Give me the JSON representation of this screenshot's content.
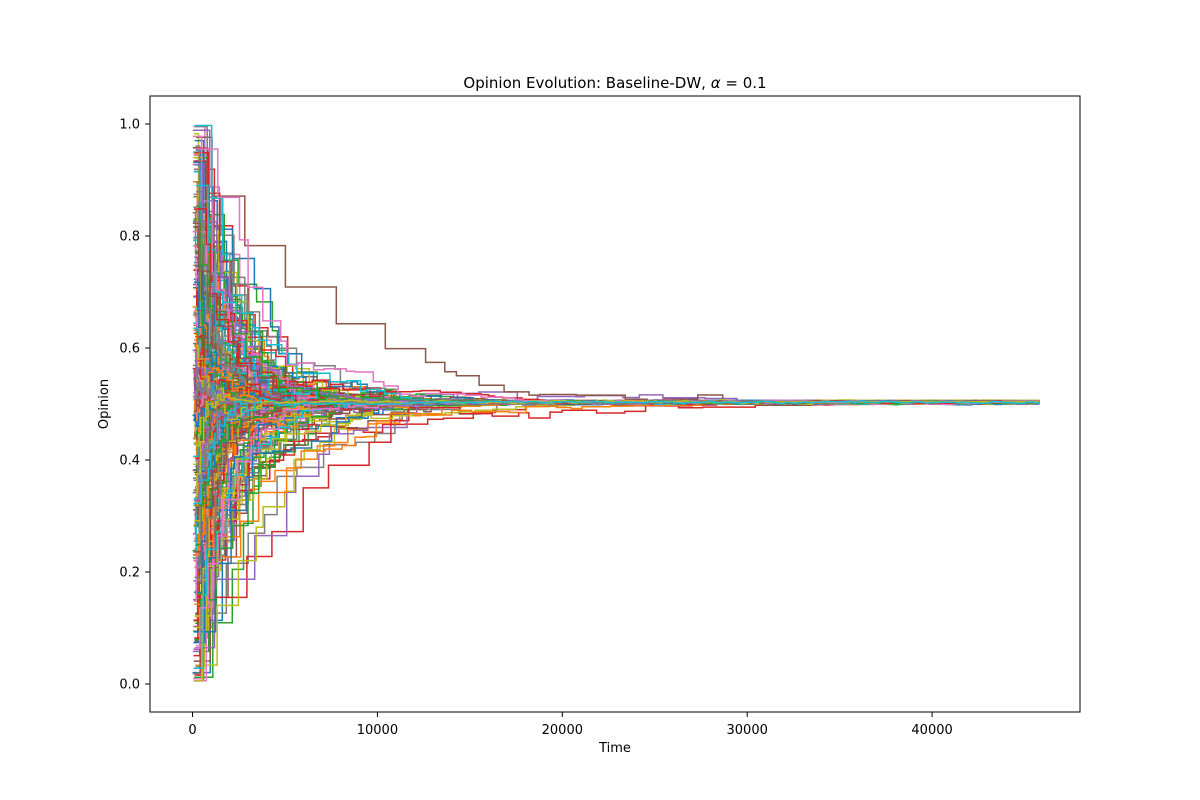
{
  "chart_data": {
    "type": "line",
    "title_prefix": "Opinion Evolution: Baseline-DW, ",
    "title_symbol": "α",
    "title_suffix": " = 0.1",
    "xlabel": "Time",
    "ylabel": "Opinion",
    "xlim": [
      -2300,
      48000
    ],
    "ylim": [
      -0.05,
      1.05
    ],
    "xticks": [
      0,
      10000,
      20000,
      30000,
      40000
    ],
    "xtick_labels": [
      "0",
      "10000",
      "20000",
      "30000",
      "40000"
    ],
    "yticks": [
      0.0,
      0.2,
      0.4,
      0.6,
      0.8,
      1.0
    ],
    "ytick_labels": [
      "0.0",
      "0.2",
      "0.4",
      "0.6",
      "0.8",
      "1.0"
    ],
    "grid": false,
    "legend": "none",
    "num_agents": 300,
    "consensus_value": 0.503,
    "x_end": 45800,
    "initial_range": [
      0.0,
      1.0
    ],
    "colors": [
      "#1f77b4",
      "#ff7f0e",
      "#2ca02c",
      "#d62728",
      "#9467bd",
      "#8c564b",
      "#e377c2",
      "#7f7f7f",
      "#bcbd22",
      "#17becf"
    ]
  }
}
